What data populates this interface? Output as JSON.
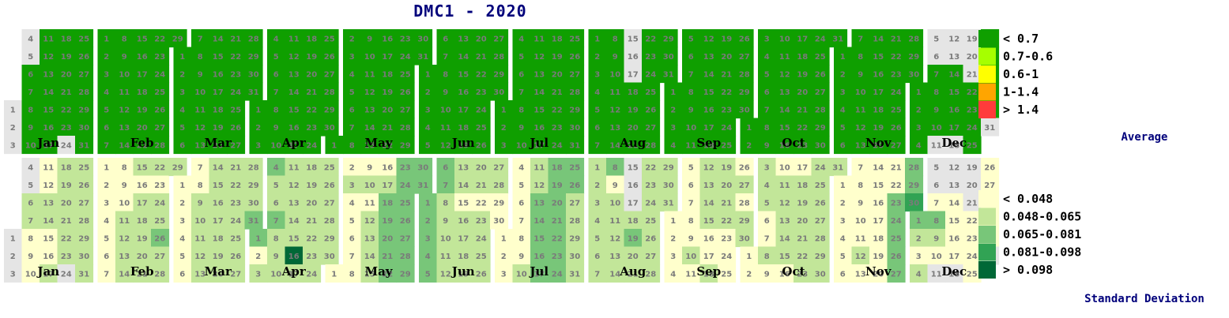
{
  "chart_data": {
    "type": "heatmap",
    "title": "DMC1 - 2020",
    "year": 2020,
    "months": [
      "Jan",
      "Feb",
      "Mar",
      "Apr",
      "May",
      "Jun",
      "Jul",
      "Aug",
      "Sep",
      "Oct",
      "Nov",
      "Dec"
    ],
    "weekday_rows": [
      "6",
      "7",
      "1",
      "2",
      "3",
      "4",
      "5"
    ],
    "panels": [
      {
        "name": "Average",
        "legend": [
          {
            "label": "< 0.7",
            "color": "#0f9f00"
          },
          {
            "label": "0.7-0.6",
            "color": "#a6ff00"
          },
          {
            "label": "0.6-1",
            "color": "#ffff00"
          },
          {
            "label": "1-1.4",
            "color": "#ffa500"
          },
          {
            "label": "> 1.4",
            "color": "#ff3b3b"
          }
        ],
        "missing_days": [
          "2020-01-01",
          "2020-01-02",
          "2020-01-03",
          "2020-01-04",
          "2020-01-05",
          "2020-01-24",
          "2020-08-15",
          "2020-08-16",
          "2020-08-17",
          "2020-12-05",
          "2020-12-06",
          "2020-12-11",
          "2020-12-12",
          "2020-12-13",
          "2020-12-18",
          "2020-12-19",
          "2020-12-20",
          "2020-12-21",
          "2020-12-31"
        ],
        "default_bin": 0,
        "values": {}
      },
      {
        "name": "Standard Deviation",
        "legend": [
          {
            "label": "< 0.048",
            "color": "#ffffcc"
          },
          {
            "label": "0.048-0.065",
            "color": "#c2e699"
          },
          {
            "label": "0.065-0.081",
            "color": "#78c679"
          },
          {
            "label": "0.081-0.098",
            "color": "#31a354"
          },
          {
            "label": "> 0.098",
            "color": "#006837"
          }
        ],
        "missing_days": [
          "2020-01-01",
          "2020-01-02",
          "2020-01-03",
          "2020-01-04",
          "2020-01-05",
          "2020-01-24",
          "2020-08-15",
          "2020-08-16",
          "2020-08-17",
          "2020-12-05",
          "2020-12-06",
          "2020-12-11",
          "2020-12-12",
          "2020-12-13",
          "2020-12-18",
          "2020-12-19",
          "2020-12-20",
          "2020-12-21",
          "2020-12-31"
        ],
        "default_bin": 1,
        "values": {
          "2020-01-01": 0,
          "2020-01-08": 0,
          "2020-01-09": 0,
          "2020-01-10": 0,
          "2020-01-11": 0,
          "2020-01-12": 0,
          "2020-01-15": 0,
          "2020-01-16": 0,
          "2020-02-01": 0,
          "2020-02-02": 0,
          "2020-02-03": 0,
          "2020-02-04": 0,
          "2020-02-05": 0,
          "2020-02-06": 0,
          "2020-02-07": 0,
          "2020-02-08": 0,
          "2020-02-09": 0,
          "2020-02-10": 0,
          "2020-02-16": 0,
          "2020-02-23": 0,
          "2020-02-26": 2,
          "2020-03-01": 0,
          "2020-03-02": 0,
          "2020-03-03": 0,
          "2020-03-04": 0,
          "2020-03-05": 0,
          "2020-03-06": 0,
          "2020-03-07": 0,
          "2020-03-08": 0,
          "2020-03-31": 2,
          "2020-04-01": 2,
          "2020-04-02": 0,
          "2020-04-04": 2,
          "2020-04-07": 2,
          "2020-04-16": 4,
          "2020-05-01": 0,
          "2020-05-02": 0,
          "2020-05-04": 0,
          "2020-05-05": 0,
          "2020-05-06": 0,
          "2020-05-07": 0,
          "2020-05-08": 0,
          "2020-05-09": 0,
          "2020-05-11": 0,
          "2020-05-16": 0,
          "2020-05-18": 2,
          "2020-05-19": 2,
          "2020-05-20": 2,
          "2020-05-21": 2,
          "2020-05-22": 2,
          "2020-05-23": 2,
          "2020-05-24": 2,
          "2020-05-25": 2,
          "2020-05-26": 2,
          "2020-05-27": 2,
          "2020-05-28": 2,
          "2020-05-29": 2,
          "2020-05-30": 2,
          "2020-05-31": 2,
          "2020-06-01": 2,
          "2020-06-02": 2,
          "2020-06-03": 2,
          "2020-06-04": 2,
          "2020-06-05": 2,
          "2020-06-06": 2,
          "2020-06-07": 2,
          "2020-06-15": 0,
          "2020-06-22": 0,
          "2020-06-29": 0,
          "2020-06-30": 0,
          "2020-07-01": 0,
          "2020-07-02": 0,
          "2020-07-03": 0,
          "2020-07-04": 0,
          "2020-07-05": 0,
          "2020-07-06": 0,
          "2020-07-07": 0,
          "2020-07-08": 0,
          "2020-07-09": 0,
          "2020-07-13": 2,
          "2020-07-14": 2,
          "2020-07-15": 2,
          "2020-07-16": 2,
          "2020-07-17": 2,
          "2020-07-18": 2,
          "2020-07-19": 2,
          "2020-07-20": 2,
          "2020-07-21": 2,
          "2020-07-22": 2,
          "2020-07-23": 2,
          "2020-07-24": 2,
          "2020-07-25": 2,
          "2020-07-26": 2,
          "2020-08-08": 2,
          "2020-08-09": 0,
          "2020-08-15": 0,
          "2020-08-16": 0,
          "2020-08-19": 2,
          "2020-09-01": 0,
          "2020-09-02": 0,
          "2020-09-03": 0,
          "2020-09-04": 0,
          "2020-09-05": 0,
          "2020-09-06": 0,
          "2020-09-07": 0,
          "2020-09-08": 0,
          "2020-09-09": 0,
          "2020-09-11": 0,
          "2020-09-16": 0,
          "2020-09-17": 0,
          "2020-09-23": 0,
          "2020-09-24": 0,
          "2020-09-25": 0,
          "2020-09-26": 0,
          "2020-09-28": 0,
          "2020-10-01": 0,
          "2020-10-02": 0,
          "2020-10-06": 0,
          "2020-10-07": 0,
          "2020-10-09": 0,
          "2020-10-10": 0,
          "2020-10-16": 0,
          "2020-10-17": 0,
          "2020-11-01": 0,
          "2020-11-02": 0,
          "2020-11-03": 0,
          "2020-11-04": 0,
          "2020-11-05": 0,
          "2020-11-06": 0,
          "2020-11-07": 0,
          "2020-11-08": 0,
          "2020-11-09": 0,
          "2020-11-10": 0,
          "2020-11-11": 0,
          "2020-11-13": 0,
          "2020-11-14": 0,
          "2020-11-15": 0,
          "2020-11-16": 0,
          "2020-11-17": 0,
          "2020-11-18": 0,
          "2020-11-19": 0,
          "2020-11-20": 0,
          "2020-11-21": 0,
          "2020-11-22": 0,
          "2020-11-23": 2,
          "2020-11-24": 2,
          "2020-11-25": 2,
          "2020-11-26": 2,
          "2020-11-27": 2,
          "2020-11-28": 2,
          "2020-11-29": 2,
          "2020-11-30": 3,
          "2020-12-01": 2,
          "2020-12-03": 0,
          "2020-12-07": 0,
          "2020-12-08": 2,
          "2020-12-10": 0,
          "2020-12-14": 0,
          "2020-12-15": 0,
          "2020-12-16": 0,
          "2020-12-17": 0,
          "2020-12-22": 0,
          "2020-12-23": 0,
          "2020-12-24": 0,
          "2020-12-25": 0,
          "2020-12-26": 0,
          "2020-12-27": 0,
          "2020-12-28": 0,
          "2020-12-29": 0,
          "2020-12-30": 0,
          "2020-12-31": 0
        }
      }
    ]
  },
  "missing_color": "#e5e5e5"
}
